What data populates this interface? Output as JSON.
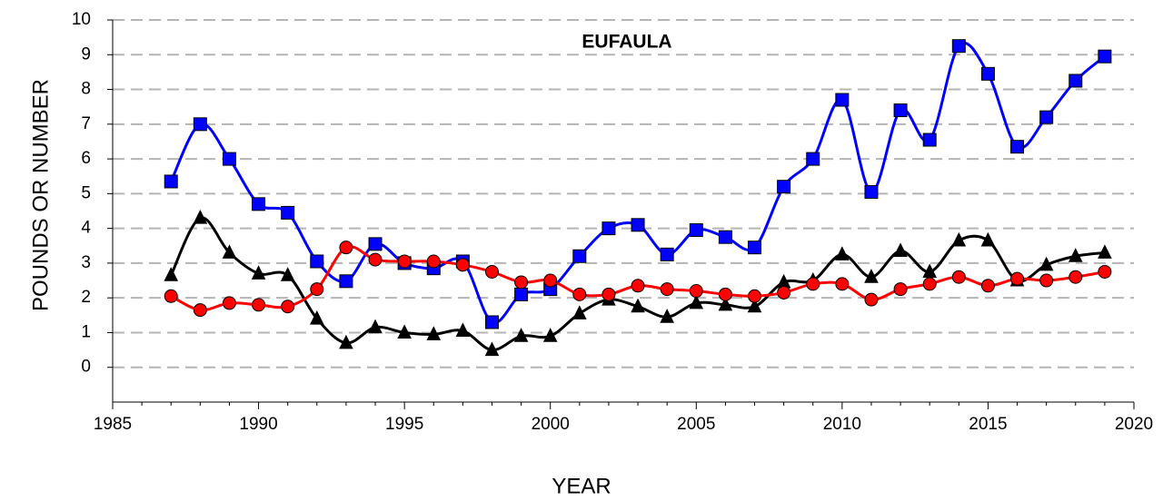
{
  "chart_data": {
    "type": "line",
    "title": "EUFAULA",
    "xlabel": "YEAR",
    "ylabel": "POUNDS OR NUMBER",
    "x": [
      1987,
      1988,
      1989,
      1990,
      1991,
      1992,
      1993,
      1994,
      1995,
      1996,
      1997,
      1998,
      1999,
      2000,
      2001,
      2002,
      2003,
      2004,
      2005,
      2006,
      2007,
      2008,
      2009,
      2010,
      2011,
      2012,
      2013,
      2014,
      2015,
      2016,
      2017,
      2018,
      2019
    ],
    "series": [
      {
        "color": "#0000ff",
        "marker": "square",
        "values": [
          5.35,
          7.0,
          6.0,
          4.7,
          4.45,
          3.05,
          2.48,
          3.55,
          3.0,
          2.85,
          3.05,
          1.3,
          2.1,
          2.25,
          3.2,
          4.0,
          4.1,
          3.25,
          3.95,
          3.75,
          3.45,
          5.2,
          6.0,
          7.7,
          5.05,
          7.4,
          6.55,
          9.25,
          8.45,
          6.35,
          7.2,
          8.25,
          8.95
        ]
      },
      {
        "color": "#000000",
        "marker": "triangle",
        "values": [
          2.65,
          4.3,
          3.3,
          2.7,
          2.65,
          1.4,
          0.7,
          1.15,
          1.0,
          0.95,
          1.05,
          0.5,
          0.9,
          0.9,
          1.55,
          1.95,
          1.75,
          1.45,
          1.85,
          1.8,
          1.75,
          2.45,
          2.5,
          3.25,
          2.6,
          3.35,
          2.75,
          3.65,
          3.65,
          2.5,
          2.95,
          3.2,
          3.3
        ]
      },
      {
        "color": "#ff0000",
        "marker": "circle",
        "values": [
          2.05,
          1.65,
          1.85,
          1.8,
          1.75,
          2.25,
          3.45,
          3.1,
          3.05,
          3.05,
          2.95,
          2.75,
          2.45,
          2.5,
          2.1,
          2.1,
          2.35,
          2.25,
          2.2,
          2.1,
          2.05,
          2.15,
          2.4,
          2.4,
          1.95,
          2.25,
          2.4,
          2.6,
          2.35,
          2.55,
          2.5,
          2.6,
          2.75
        ]
      }
    ],
    "xlim": [
      1985,
      2020
    ],
    "xticks": [
      1985,
      1990,
      1995,
      2000,
      2005,
      2010,
      2015,
      2020
    ],
    "ylim": [
      -1,
      10
    ],
    "yticks": [
      0,
      1,
      2,
      3,
      4,
      5,
      6,
      7,
      8,
      9,
      10
    ],
    "grid": true,
    "smooth": true
  }
}
